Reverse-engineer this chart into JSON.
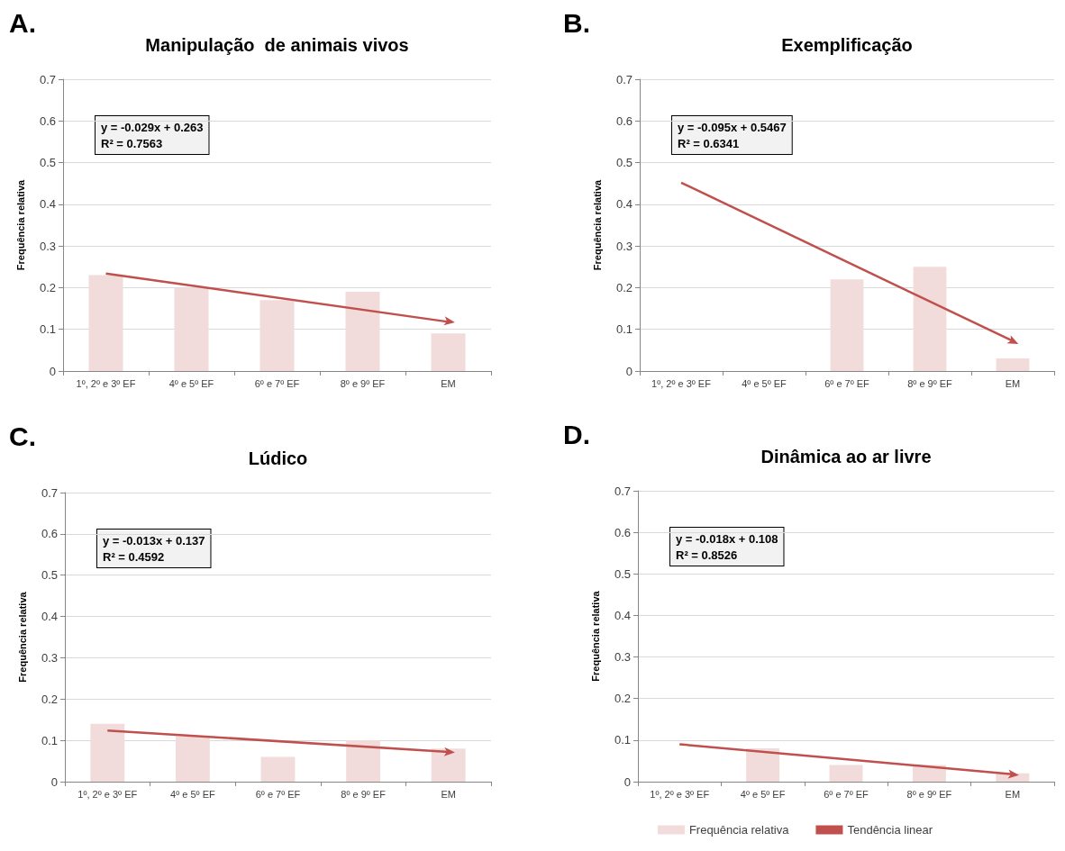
{
  "chart_data": [
    {
      "type": "bar",
      "title": "Manipulação  de animais vivos",
      "ylabel": "Frequência relativa",
      "annotations": [
        "A.",
        "y = -0.029x + 0.263",
        "R² = 0.7563"
      ],
      "categories": [
        "1º, 2º e 3º EF",
        "4º e 5º EF",
        "6º e 7º EF",
        "8º e 9º EF",
        "EM"
      ],
      "series": [
        {
          "color": "#f2dcdb",
          "values": [
            0.23,
            0.2,
            0.17,
            0.19,
            0.09
          ]
        },
        {
          "type": "line",
          "color": "#c0504d",
          "x": [
            "1º, 2º e 3º EF",
            "EM"
          ],
          "values": [
            0.234,
            0.118
          ]
        }
      ],
      "ylim": [
        0,
        0.7
      ],
      "yticks": [
        0,
        0.1,
        0.2,
        0.3,
        0.4,
        0.5,
        0.6,
        0.7
      ],
      "grid": "y"
    },
    {
      "type": "bar",
      "title": "Exemplificação",
      "ylabel": "Frequência relativa",
      "annotations": [
        "B.",
        "y = -0.095x + 0.5467",
        "R² = 0.6341"
      ],
      "categories": [
        "1º, 2º e 3º EF",
        "4º e 5º EF",
        "6º e 7º EF",
        "8º e 9º EF",
        "EM"
      ],
      "series": [
        {
          "color": "#f2dcdb",
          "values": [
            0,
            0,
            0.22,
            0.25,
            0.03
          ]
        },
        {
          "type": "line",
          "color": "#c0504d",
          "x": [
            "1º, 2º e 3º EF",
            "EM"
          ],
          "values": [
            0.452,
            0.072
          ]
        }
      ],
      "ylim": [
        0,
        0.7
      ],
      "yticks": [
        0,
        0.1,
        0.2,
        0.3,
        0.4,
        0.5,
        0.6,
        0.7
      ],
      "grid": "y"
    },
    {
      "type": "bar",
      "title": "Lúdico",
      "ylabel": "Frequência relativa",
      "annotations": [
        "C.",
        "y = -0.013x + 0.137",
        "R² = 0.4592"
      ],
      "categories": [
        "1º, 2º e 3º EF",
        "4º e 5º EF",
        "6º e 7º EF",
        "8º e 9º EF",
        "EM"
      ],
      "series": [
        {
          "color": "#f2dcdb",
          "values": [
            0.14,
            0.11,
            0.06,
            0.1,
            0.08
          ]
        },
        {
          "type": "line",
          "color": "#c0504d",
          "x": [
            "1º, 2º e 3º EF",
            "EM"
          ],
          "values": [
            0.124,
            0.072
          ]
        }
      ],
      "ylim": [
        0,
        0.7
      ],
      "yticks": [
        0,
        0.1,
        0.2,
        0.3,
        0.4,
        0.5,
        0.6,
        0.7
      ],
      "grid": "y"
    },
    {
      "type": "bar",
      "title": "Dinâmica ao ar livre",
      "ylabel": "Frequência relativa",
      "annotations": [
        "D.",
        "y = -0.018x + 0.108",
        "R² = 0.8526"
      ],
      "categories": [
        "1º, 2º e 3º EF",
        "4º e 5º EF",
        "6º e 7º EF",
        "8º e 9º EF",
        "EM"
      ],
      "series": [
        {
          "name": "Frequência relativa",
          "color": "#f2dcdb",
          "values": [
            0,
            0.08,
            0.04,
            0.04,
            0.02
          ]
        },
        {
          "name": "Tendência linear",
          "type": "line",
          "color": "#c0504d",
          "x": [
            "1º, 2º e 3º EF",
            "EM"
          ],
          "values": [
            0.09,
            0.018
          ]
        }
      ],
      "ylim": [
        0,
        0.7
      ],
      "yticks": [
        0,
        0.1,
        0.2,
        0.3,
        0.4,
        0.5,
        0.6,
        0.7
      ],
      "grid": "y",
      "legend": "bottom"
    }
  ]
}
